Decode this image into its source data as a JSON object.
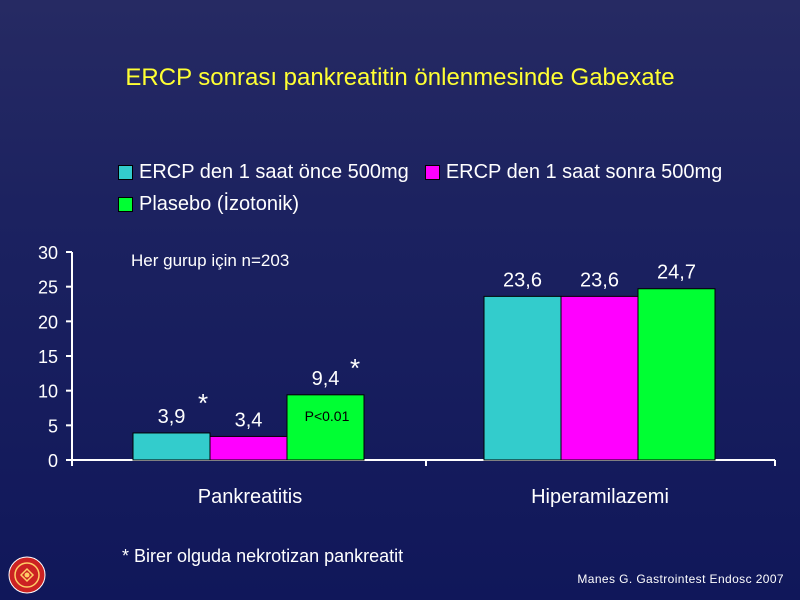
{
  "title": "ERCP sonrası pankreatitin önlenmesinde Gabexate",
  "footnote": "*  Birer  olguda nekrotizan pankreatit",
  "source": "Manes G. Gastrointest Endosc 2007",
  "chart_data": {
    "type": "bar",
    "categories": [
      "Pankreatitis",
      "Hiperamilazemi"
    ],
    "series": [
      {
        "name": "ERCP den 1 saat önce 500mg",
        "color": "#33cccc",
        "values": [
          3.9,
          23.6
        ],
        "labels": [
          "3,9",
          "23,6"
        ]
      },
      {
        "name": "ERCP den 1 saat sonra 500mg",
        "color": "#ff00ff",
        "values": [
          3.4,
          23.6
        ],
        "labels": [
          "3,4",
          "23,6"
        ]
      },
      {
        "name": "Plasebo (İzotonik)",
        "color": "#00ff33",
        "values": [
          9.4,
          24.7
        ],
        "labels": [
          "9,4",
          "24,7"
        ]
      }
    ],
    "ylim": [
      0,
      30
    ],
    "yticks": [
      "0",
      "5",
      "10",
      "15",
      "20",
      "25",
      "30"
    ],
    "annotations": {
      "n_text": "Her gurup için n=203",
      "p_text": "P<0.01",
      "star": "*"
    },
    "grid": false,
    "legend_position": "top"
  }
}
